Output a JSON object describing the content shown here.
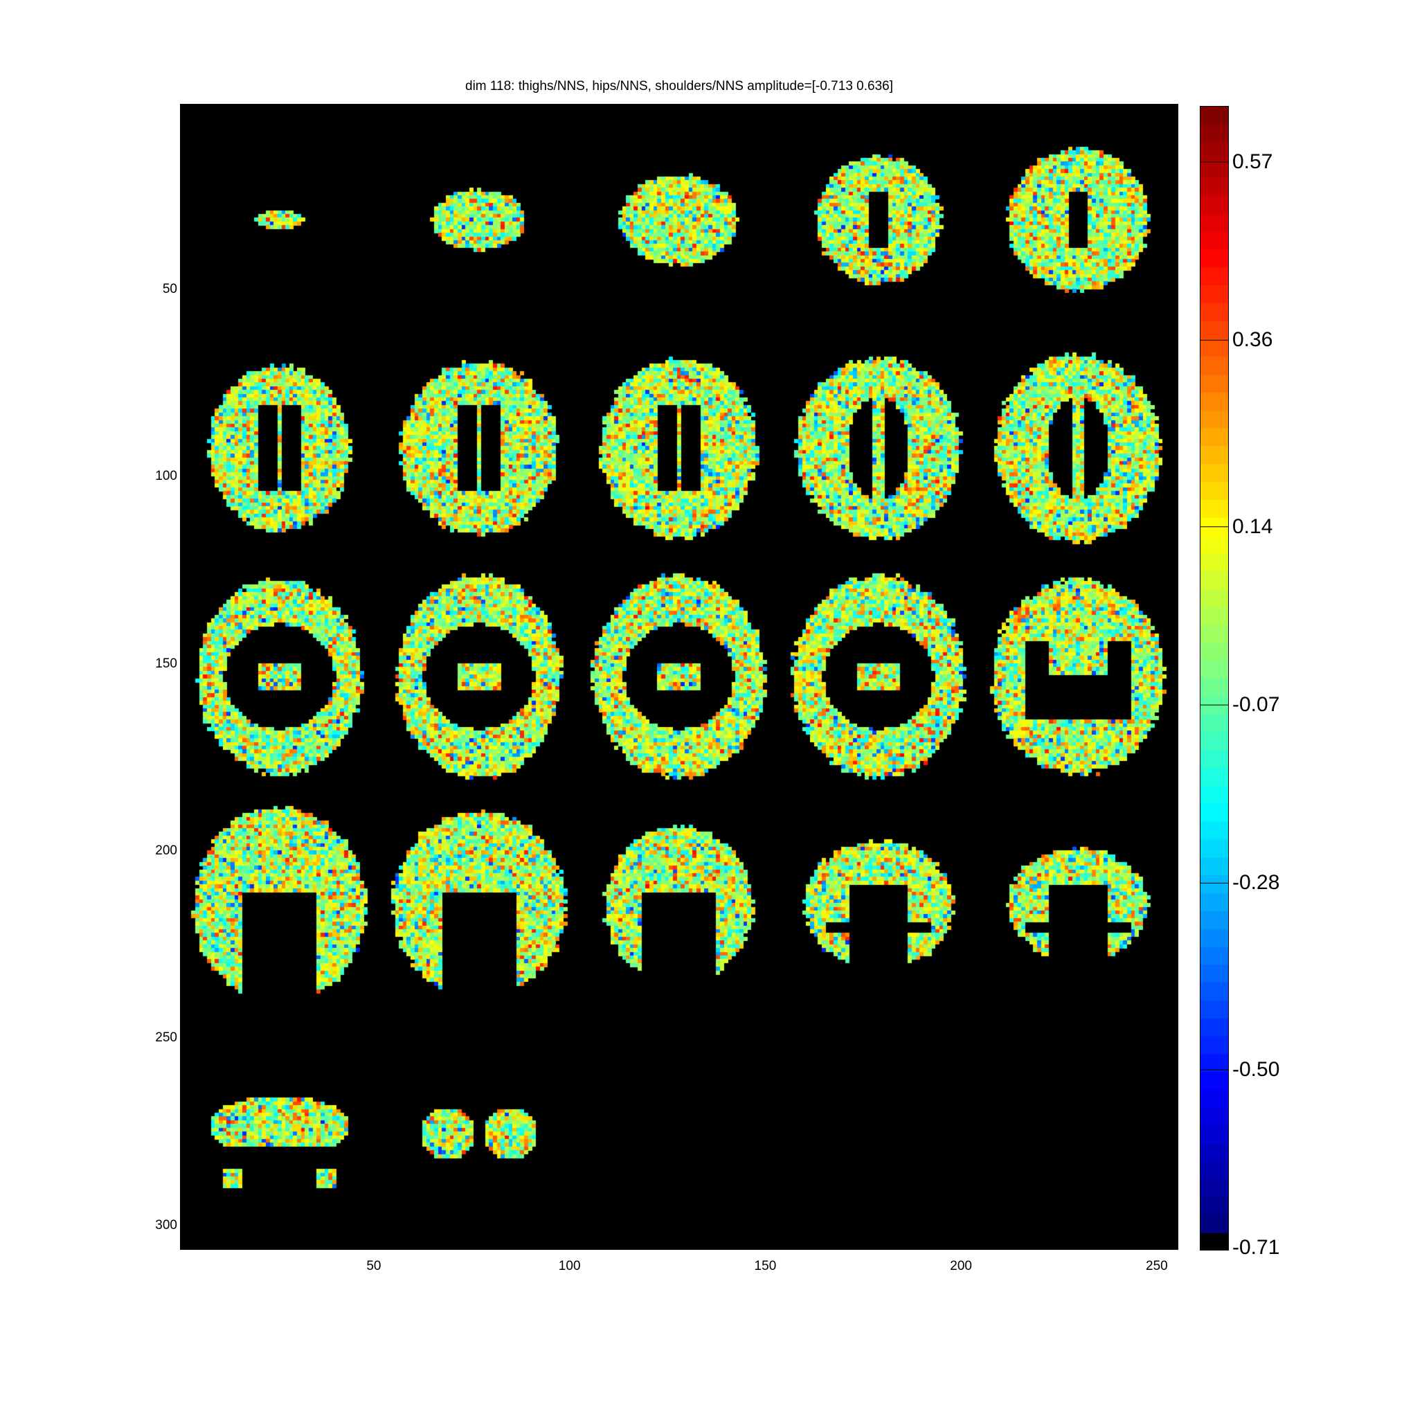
{
  "chart_data": {
    "type": "heatmap",
    "title": "dim 118: thighs/NNS, hips/NNS, shoulders/NNS amplitude=[-0.713 0.636]",
    "description_kind": "mosaic of 22 axial brain slices",
    "xlim": [
      0.5,
      255.5
    ],
    "ylim": [
      0.5,
      306.5
    ],
    "x_ticks": [
      "50",
      "100",
      "150",
      "200",
      "250"
    ],
    "x_tick_values": [
      50,
      100,
      150,
      200,
      250
    ],
    "y_ticks": [
      "50",
      "100",
      "150",
      "200",
      "250",
      "300"
    ],
    "y_tick_values": [
      50,
      100,
      150,
      200,
      250,
      300
    ],
    "colormap": "jet",
    "background": "#000000",
    "clim": [
      -0.713,
      0.636
    ],
    "colorbar_ticks": [
      "0.57",
      "0.36",
      "0.14",
      "-0.07",
      "-0.28",
      "-0.50",
      "-0.71"
    ],
    "colorbar_tick_values": [
      0.57,
      0.36,
      0.14,
      -0.07,
      -0.28,
      -0.5,
      -0.71
    ],
    "n_slices": 22,
    "grid": false
  }
}
